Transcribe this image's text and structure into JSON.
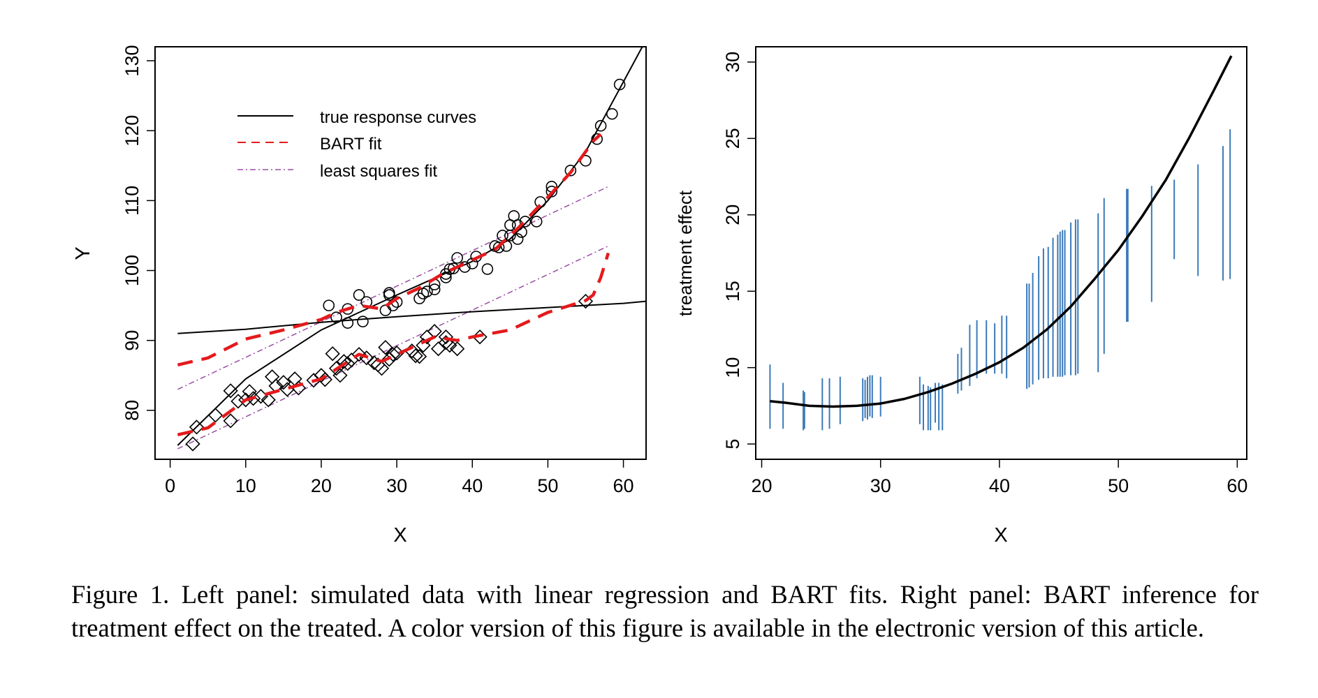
{
  "caption": "Figure 1.   Left panel: simulated data with linear regression and BART fits. Right panel: BART inference for treatment effect on the treated. A color version of this figure is available in the electronic version of this article.",
  "colors": {
    "bart": "#e41a1c",
    "ls": "#984ea3",
    "interval": "#3b7ab8",
    "ink": "#000000"
  },
  "chart_data": [
    {
      "type": "scatter",
      "panel": "left",
      "title": "",
      "xlabel": "X",
      "ylabel": "Y",
      "xlim": [
        -2,
        63
      ],
      "ylim": [
        73,
        132
      ],
      "xticks": [
        0,
        10,
        20,
        30,
        40,
        50,
        60
      ],
      "yticks": [
        80,
        90,
        100,
        110,
        120,
        130
      ],
      "legend": {
        "placement": "top-left",
        "entries": [
          "true response curves",
          "BART fit",
          "least squares fit"
        ]
      },
      "true_curves": [
        {
          "name": "treated",
          "x": [
            1,
            10,
            20,
            30,
            40,
            45,
            50,
            55,
            60,
            63
          ],
          "y": [
            75,
            84.5,
            91.5,
            96.5,
            101.3,
            104.5,
            110,
            117,
            127,
            133
          ]
        },
        {
          "name": "control",
          "x": [
            1,
            10,
            20,
            30,
            40,
            50,
            60,
            63
          ],
          "y": [
            91,
            91.6,
            92.6,
            93.4,
            94.1,
            94.7,
            95.3,
            95.6
          ]
        }
      ],
      "bart_fits": [
        {
          "name": "treated",
          "x": [
            1,
            5,
            10,
            15,
            20,
            22,
            25,
            28,
            30,
            33,
            36,
            38,
            40,
            43,
            46,
            50,
            53,
            56,
            57
          ],
          "y": [
            86.5,
            87.5,
            90.2,
            91.5,
            93,
            94,
            95,
            94.5,
            96,
            97.5,
            99.5,
            100.5,
            101.5,
            103,
            106,
            110.5,
            114,
            118.5,
            119.5
          ]
        },
        {
          "name": "control",
          "x": [
            1,
            5,
            10,
            15,
            20,
            25,
            28,
            30,
            35,
            38,
            40,
            45,
            50,
            55,
            56,
            57,
            58
          ],
          "y": [
            76.5,
            77.5,
            81.5,
            83,
            84.5,
            88,
            87,
            88,
            90.5,
            90,
            90.5,
            91.5,
            94,
            95.7,
            96.5,
            99,
            102.5
          ]
        }
      ],
      "ls_fits": [
        {
          "name": "treated",
          "x": [
            1,
            58
          ],
          "y": [
            83,
            112
          ]
        },
        {
          "name": "control",
          "x": [
            1,
            58
          ],
          "y": [
            74.5,
            103.5
          ]
        }
      ],
      "treated_points": {
        "x": [
          21,
          22,
          23.5,
          23.5,
          25,
          25.5,
          26,
          29,
          29,
          29.5,
          28.5,
          30,
          33,
          33.5,
          34,
          35,
          35,
          36.5,
          36.5,
          37,
          38,
          37.5,
          39,
          40,
          40.5,
          42,
          43,
          43.5,
          44,
          44.5,
          45,
          45,
          45.5,
          46,
          46,
          47,
          46.5,
          48.5,
          49,
          50.5,
          50.5,
          53,
          55,
          56.5,
          57,
          58.5,
          59.5
        ],
        "y": [
          95,
          93.3,
          94.5,
          92.5,
          96.5,
          92.7,
          95.5,
          96.5,
          96.8,
          95,
          94.3,
          95.5,
          96,
          96.7,
          97,
          98,
          97.3,
          99,
          99.5,
          100.2,
          101.8,
          100.3,
          100.5,
          101,
          102,
          100.2,
          103.5,
          103.3,
          105,
          103.5,
          106.5,
          105,
          107.8,
          104.5,
          106.5,
          107,
          105.5,
          107,
          109.8,
          111.3,
          112,
          114.3,
          115.7,
          118.8,
          120.7,
          122.4,
          126.6
        ]
      },
      "control_points": {
        "x": [
          3,
          3.5,
          6,
          8,
          8,
          9,
          10,
          10.5,
          11,
          12,
          13,
          13.5,
          14,
          15,
          15.5,
          16.5,
          17,
          19,
          20,
          20.5,
          21.5,
          22,
          22.5,
          23,
          23.5,
          24,
          25,
          26,
          27,
          27.5,
          28,
          28.5,
          29,
          29.5,
          30,
          32,
          32.5,
          33,
          33.5,
          34,
          35,
          35.5,
          36.5,
          36.5,
          37,
          38,
          41,
          55
        ],
        "y": [
          75.2,
          77.6,
          79.3,
          78.5,
          82.8,
          81.3,
          81.5,
          82.7,
          81.7,
          82,
          81.5,
          84.8,
          83.5,
          84,
          83,
          84.5,
          83.2,
          84.3,
          85,
          84.4,
          88.1,
          86,
          85,
          87,
          86.7,
          87.2,
          88,
          87.5,
          86.8,
          86.5,
          86,
          89,
          87.3,
          88,
          88.2,
          88.5,
          87.8,
          87.7,
          89.3,
          90.5,
          91.3,
          88.8,
          89.7,
          90.5,
          89.3,
          88.8,
          90.5,
          95.6
        ]
      }
    },
    {
      "type": "line",
      "panel": "right",
      "title": "",
      "xlabel": "X",
      "ylabel": "treatment effect",
      "xlim": [
        19.5,
        60.8
      ],
      "ylim": [
        4,
        31
      ],
      "xticks": [
        20,
        30,
        40,
        50,
        60
      ],
      "yticks": [
        5,
        10,
        15,
        20,
        25,
        30
      ],
      "curve": {
        "x": [
          20.7,
          22,
          24,
          26,
          28,
          30,
          32,
          34,
          36,
          38,
          40,
          42,
          44,
          46,
          48,
          50,
          52,
          54,
          56,
          58,
          59.5
        ],
        "y": [
          7.8,
          7.7,
          7.5,
          7.45,
          7.5,
          7.65,
          7.95,
          8.4,
          8.95,
          9.6,
          10.35,
          11.3,
          12.5,
          14,
          15.8,
          17.7,
          19.9,
          22.3,
          25.1,
          28.1,
          30.4
        ]
      },
      "intervals": [
        {
          "x": 20.7,
          "lo": 6,
          "hi": 10.2
        },
        {
          "x": 21.8,
          "lo": 6,
          "hi": 9
        },
        {
          "x": 23.5,
          "lo": 5.9,
          "hi": 8.5
        },
        {
          "x": 23.6,
          "lo": 6,
          "hi": 8.4
        },
        {
          "x": 25.1,
          "lo": 5.9,
          "hi": 9.3
        },
        {
          "x": 25.7,
          "lo": 6,
          "hi": 9.3
        },
        {
          "x": 26.6,
          "lo": 6.3,
          "hi": 9.4
        },
        {
          "x": 28.5,
          "lo": 6.5,
          "hi": 9.3
        },
        {
          "x": 28.7,
          "lo": 6.7,
          "hi": 9.2
        },
        {
          "x": 28.9,
          "lo": 6.6,
          "hi": 9.4
        },
        {
          "x": 29.1,
          "lo": 6.8,
          "hi": 9.5
        },
        {
          "x": 29.3,
          "lo": 6.7,
          "hi": 9.5
        },
        {
          "x": 30,
          "lo": 6.8,
          "hi": 9.4
        },
        {
          "x": 33.3,
          "lo": 6.3,
          "hi": 9.4
        },
        {
          "x": 33.6,
          "lo": 5.9,
          "hi": 8.9
        },
        {
          "x": 34,
          "lo": 5.9,
          "hi": 8.8
        },
        {
          "x": 34.2,
          "lo": 5.9,
          "hi": 8.7
        },
        {
          "x": 34.6,
          "lo": 6.4,
          "hi": 9
        },
        {
          "x": 34.9,
          "lo": 5.9,
          "hi": 9
        },
        {
          "x": 35.2,
          "lo": 5.9,
          "hi": 8.9
        },
        {
          "x": 36.5,
          "lo": 8.3,
          "hi": 10.9
        },
        {
          "x": 36.8,
          "lo": 8.5,
          "hi": 11.3
        },
        {
          "x": 37.5,
          "lo": 8.8,
          "hi": 12.8
        },
        {
          "x": 38.1,
          "lo": 9.3,
          "hi": 13.1
        },
        {
          "x": 38.9,
          "lo": 9.6,
          "hi": 13.1
        },
        {
          "x": 39.6,
          "lo": 9.6,
          "hi": 12.9
        },
        {
          "x": 40.2,
          "lo": 9.6,
          "hi": 13.4
        },
        {
          "x": 40.6,
          "lo": 9.3,
          "hi": 13.4
        },
        {
          "x": 42.3,
          "lo": 8.6,
          "hi": 15.5
        },
        {
          "x": 42.5,
          "lo": 8.7,
          "hi": 15.5
        },
        {
          "x": 42.8,
          "lo": 8.9,
          "hi": 16.2
        },
        {
          "x": 43.3,
          "lo": 9.2,
          "hi": 17.3
        },
        {
          "x": 43.7,
          "lo": 9.3,
          "hi": 17.8
        },
        {
          "x": 44.1,
          "lo": 9.3,
          "hi": 17.9
        },
        {
          "x": 44.5,
          "lo": 9.4,
          "hi": 18.5
        },
        {
          "x": 44.9,
          "lo": 9.4,
          "hi": 18.7
        },
        {
          "x": 45.1,
          "lo": 9.4,
          "hi": 18.9
        },
        {
          "x": 45.3,
          "lo": 9.4,
          "hi": 19
        },
        {
          "x": 45.5,
          "lo": 9.5,
          "hi": 19
        },
        {
          "x": 46,
          "lo": 9.5,
          "hi": 19.5
        },
        {
          "x": 46.4,
          "lo": 9.5,
          "hi": 19.7
        },
        {
          "x": 46.6,
          "lo": 9.6,
          "hi": 19.7
        },
        {
          "x": 48.3,
          "lo": 9.7,
          "hi": 20.1
        },
        {
          "x": 48.8,
          "lo": 10.9,
          "hi": 21.1
        },
        {
          "x": 50.7,
          "lo": 13,
          "hi": 21.7
        },
        {
          "x": 50.8,
          "lo": 13,
          "hi": 21.7
        },
        {
          "x": 52.8,
          "lo": 14.3,
          "hi": 21.9
        },
        {
          "x": 54.7,
          "lo": 17.1,
          "hi": 22.3
        },
        {
          "x": 56.7,
          "lo": 16,
          "hi": 23.3
        },
        {
          "x": 58.8,
          "lo": 15.7,
          "hi": 24.5
        },
        {
          "x": 59.4,
          "lo": 15.8,
          "hi": 25.6
        }
      ]
    }
  ]
}
